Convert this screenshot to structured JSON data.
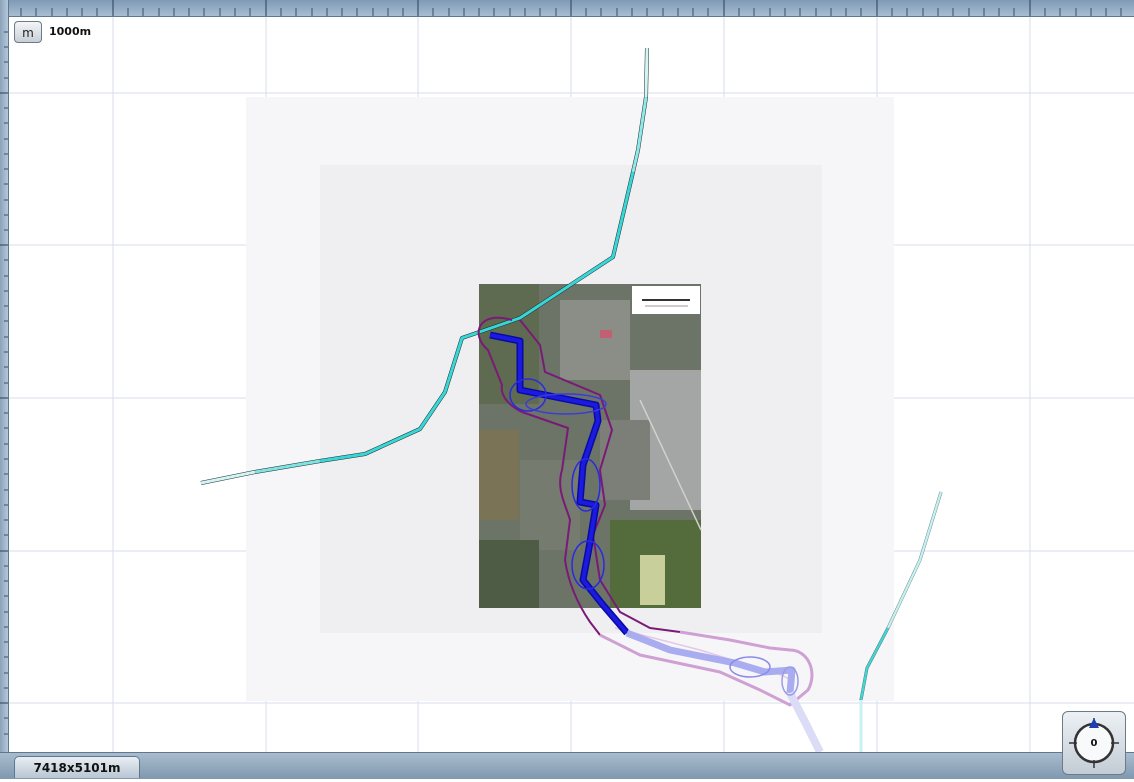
{
  "toolbar": {
    "unit_button_label": "m"
  },
  "scale": {
    "label": "1000m"
  },
  "status": {
    "map_dimensions": "7418x5101m"
  },
  "compass": {
    "heading": "0"
  },
  "colors": {
    "track_cyan": "#38d6d6",
    "route_blue": "#1a1ae0",
    "buffer_purple": "#7a1a78",
    "grid": "#d8dced"
  },
  "icons": [
    "compass-icon",
    "north-arrow-icon"
  ]
}
